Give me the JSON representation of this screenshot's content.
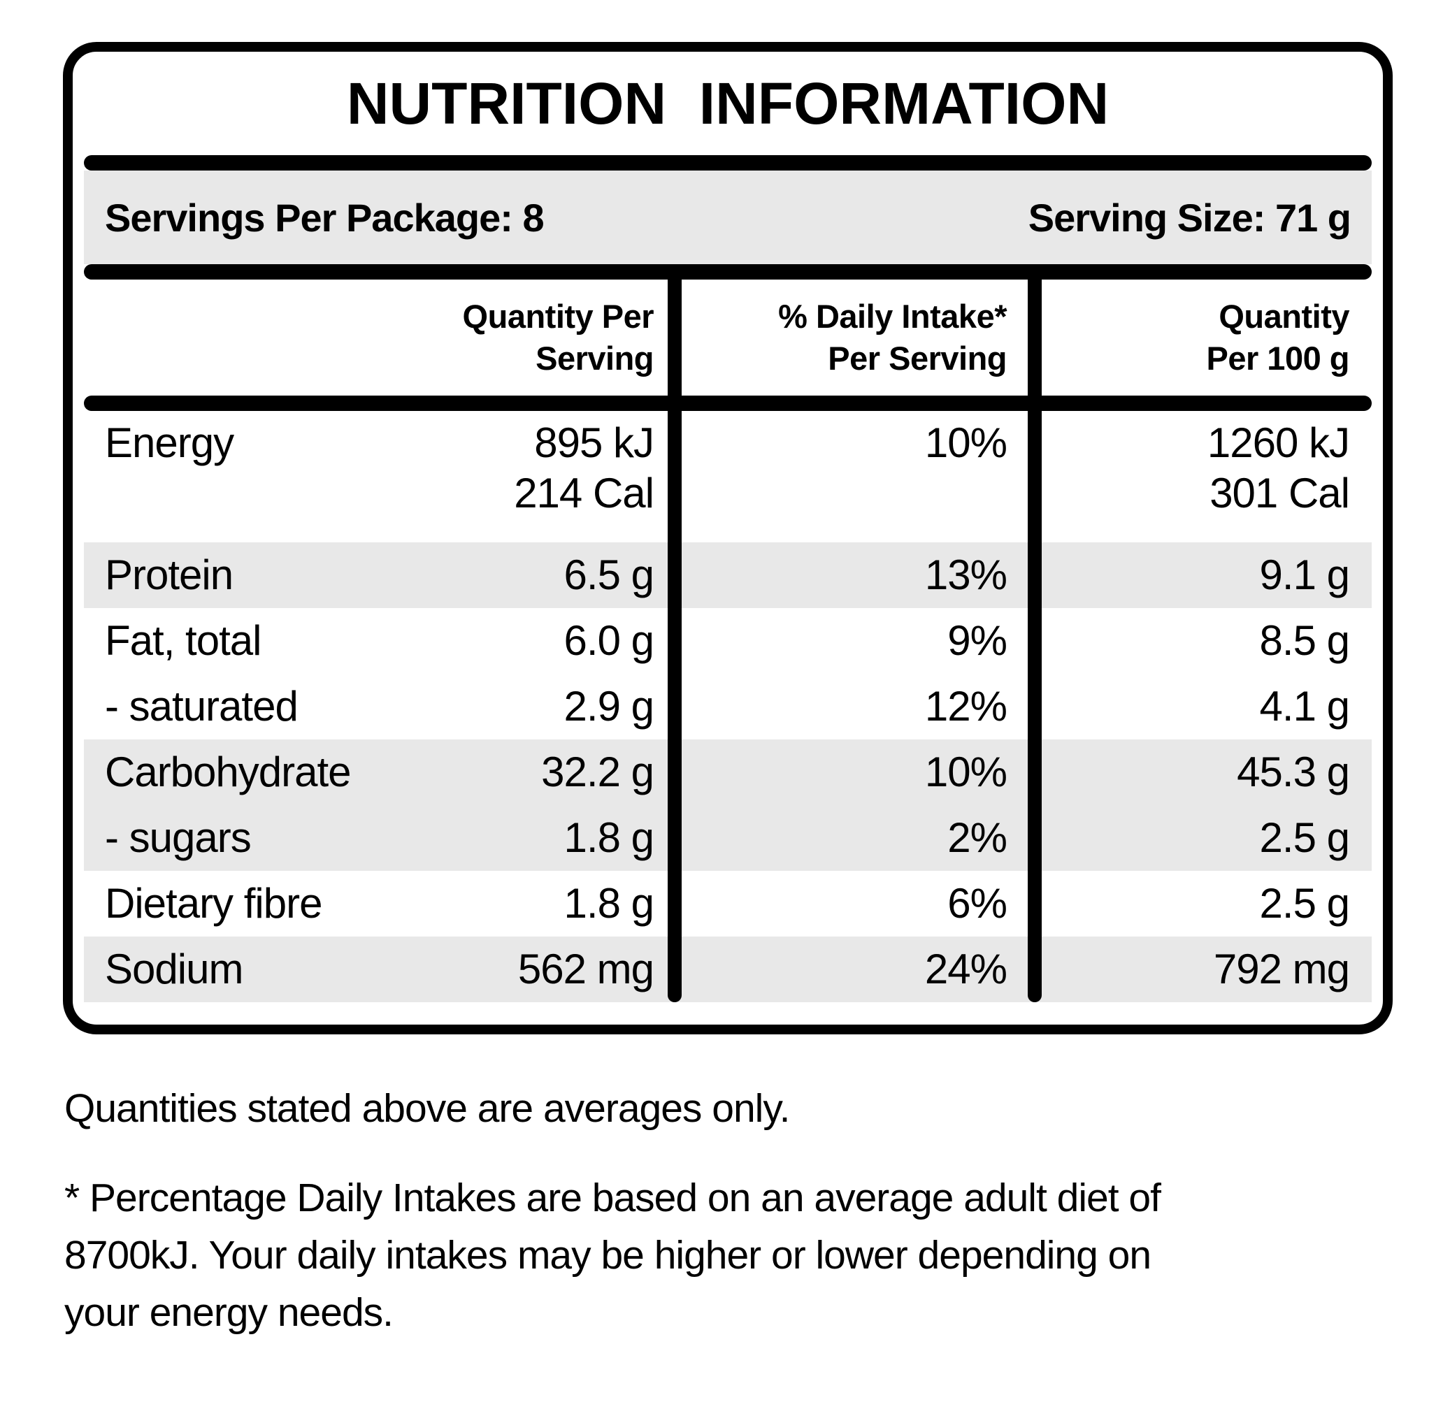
{
  "colors": {
    "ink": "#000000",
    "paper": "#ffffff",
    "row_shade": "#e8e8e8"
  },
  "panel": {
    "title": "NUTRITION  INFORMATION",
    "servings_per_package": "Servings Per Package: 8",
    "serving_size": "Serving Size: 71 g"
  },
  "table": {
    "header": {
      "quantity_per_serving": [
        "Quantity Per",
        "Serving"
      ],
      "daily_intake": [
        "% Daily Intake*",
        "Per Serving"
      ],
      "quantity_per_100g": [
        "Quantity",
        "Per 100 g"
      ]
    },
    "rows": [
      {
        "nutrient": "Energy",
        "per_serving": [
          "895 kJ",
          "214 Cal"
        ],
        "daily_intake_pct": "10%",
        "per_100g": [
          "1260 kJ",
          "301 Cal"
        ],
        "shaded": false
      },
      {
        "nutrient": "Protein",
        "per_serving": [
          "6.5 g"
        ],
        "daily_intake_pct": "13%",
        "per_100g": [
          "9.1 g"
        ],
        "shaded": true
      },
      {
        "nutrient": "Fat, total",
        "per_serving": [
          "6.0 g"
        ],
        "daily_intake_pct": "9%",
        "per_100g": [
          "8.5 g"
        ],
        "shaded": false
      },
      {
        "nutrient": "- saturated",
        "per_serving": [
          "2.9 g"
        ],
        "daily_intake_pct": "12%",
        "per_100g": [
          "4.1 g"
        ],
        "shaded": false
      },
      {
        "nutrient": "Carbohydrate",
        "per_serving": [
          "32.2 g"
        ],
        "daily_intake_pct": "10%",
        "per_100g": [
          "45.3 g"
        ],
        "shaded": true
      },
      {
        "nutrient": "- sugars",
        "per_serving": [
          "1.8 g"
        ],
        "daily_intake_pct": "2%",
        "per_100g": [
          "2.5 g"
        ],
        "shaded": true
      },
      {
        "nutrient": "Dietary fibre",
        "per_serving": [
          "1.8 g"
        ],
        "daily_intake_pct": "6%",
        "per_100g": [
          "2.5 g"
        ],
        "shaded": false
      },
      {
        "nutrient": "Sodium",
        "per_serving": [
          "562 mg"
        ],
        "daily_intake_pct": "24%",
        "per_100g": [
          "792 mg"
        ],
        "shaded": true
      }
    ]
  },
  "footer": {
    "averages_note": "Quantities stated above are averages only.",
    "daily_intake_note_lines": [
      "* Percentage Daily Intakes are based on an average adult diet of",
      "8700kJ. Your daily intakes may be higher or lower depending on",
      "your energy needs."
    ]
  }
}
